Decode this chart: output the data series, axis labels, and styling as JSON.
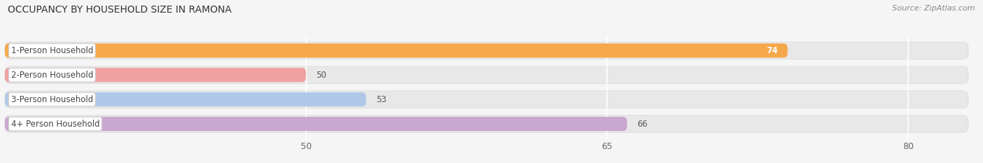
{
  "title": "OCCUPANCY BY HOUSEHOLD SIZE IN RAMONA",
  "source": "Source: ZipAtlas.com",
  "categories": [
    "1-Person Household",
    "2-Person Household",
    "3-Person Household",
    "4+ Person Household"
  ],
  "values": [
    74,
    50,
    53,
    66
  ],
  "bar_colors": [
    "#F5A84A",
    "#F0A0A0",
    "#B0C8E8",
    "#C8A8D0"
  ],
  "value_on_bar": [
    true,
    false,
    false,
    false
  ],
  "value_colors_on": [
    "white",
    "#666666",
    "#666666",
    "#666666"
  ],
  "xlim": [
    35,
    83
  ],
  "xmin": 35,
  "xmax": 83,
  "xticks": [
    50,
    65,
    80
  ],
  "title_fontsize": 10,
  "source_fontsize": 8,
  "label_fontsize": 8.5,
  "value_fontsize": 8.5,
  "background_color": "#f5f5f5",
  "row_bg_color": "#e8e8e8",
  "row_bg_border": "#d8d8d8",
  "label_box_color": "#ffffff",
  "label_box_border": "#d0d0d0"
}
